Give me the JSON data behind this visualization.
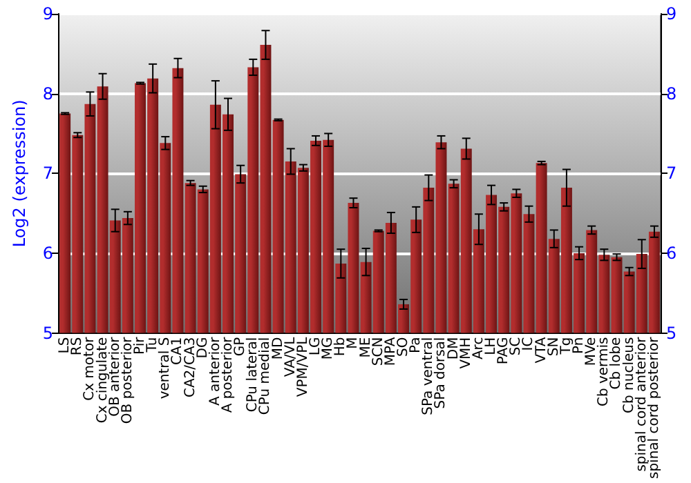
{
  "chart_data": {
    "type": "bar",
    "ylabel": "Log2 (expression)",
    "categories": [
      "LS",
      "RS",
      "Cx motor",
      "Cx cingulate",
      "OB anterior",
      "OB posterior",
      "Pir",
      "Tu",
      "ventral S",
      "CA1",
      "CA2/CA3",
      "DG",
      "A anterior",
      "A posterior",
      "GP",
      "CPu lateral",
      "CPu medial",
      "MD",
      "VA/VL",
      "VPM/VPL",
      "LG",
      "MG",
      "Hb",
      "M",
      "ME",
      "SCN",
      "MPA",
      "SO",
      "Pa",
      "SPa ventral",
      "SPa dorsal",
      "DM",
      "VMH",
      "Arc",
      "LH",
      "PAG",
      "SC",
      "IC",
      "VTA",
      "SN",
      "Tg",
      "Pn",
      "MVe",
      "Cb vermis",
      "Cb lobe",
      "Cb nucleus",
      "spinal cord anterior",
      "spinal cord posterior"
    ],
    "values": [
      7.75,
      7.48,
      7.87,
      8.09,
      6.41,
      6.44,
      8.13,
      8.19,
      7.38,
      8.32,
      6.88,
      6.8,
      7.86,
      7.74,
      6.99,
      8.33,
      8.61,
      7.67,
      7.15,
      7.07,
      7.41,
      7.42,
      5.87,
      6.63,
      5.89,
      6.28,
      6.38,
      5.36,
      6.42,
      6.82,
      7.39,
      6.87,
      7.31,
      6.3,
      6.73,
      6.58,
      6.75,
      6.49,
      7.13,
      6.18,
      6.82,
      6.0,
      6.29,
      5.98,
      5.95,
      5.77,
      5.99,
      6.27
    ],
    "errors": [
      0.01,
      0.03,
      0.15,
      0.16,
      0.14,
      0.08,
      0.01,
      0.18,
      0.08,
      0.12,
      0.03,
      0.04,
      0.3,
      0.2,
      0.11,
      0.1,
      0.18,
      0.01,
      0.16,
      0.04,
      0.06,
      0.08,
      0.18,
      0.06,
      0.17,
      0.01,
      0.13,
      0.06,
      0.16,
      0.16,
      0.08,
      0.05,
      0.13,
      0.19,
      0.12,
      0.05,
      0.05,
      0.1,
      0.02,
      0.11,
      0.23,
      0.08,
      0.05,
      0.07,
      0.04,
      0.05,
      0.18,
      0.07
    ],
    "color": "#b22d2d",
    "ylim": [
      5,
      9
    ],
    "yticks": [
      5,
      6,
      7,
      8,
      9
    ],
    "y2lim": [
      5,
      9
    ],
    "y2ticks": [
      5,
      6,
      7,
      8,
      9
    ],
    "grid": "y"
  }
}
